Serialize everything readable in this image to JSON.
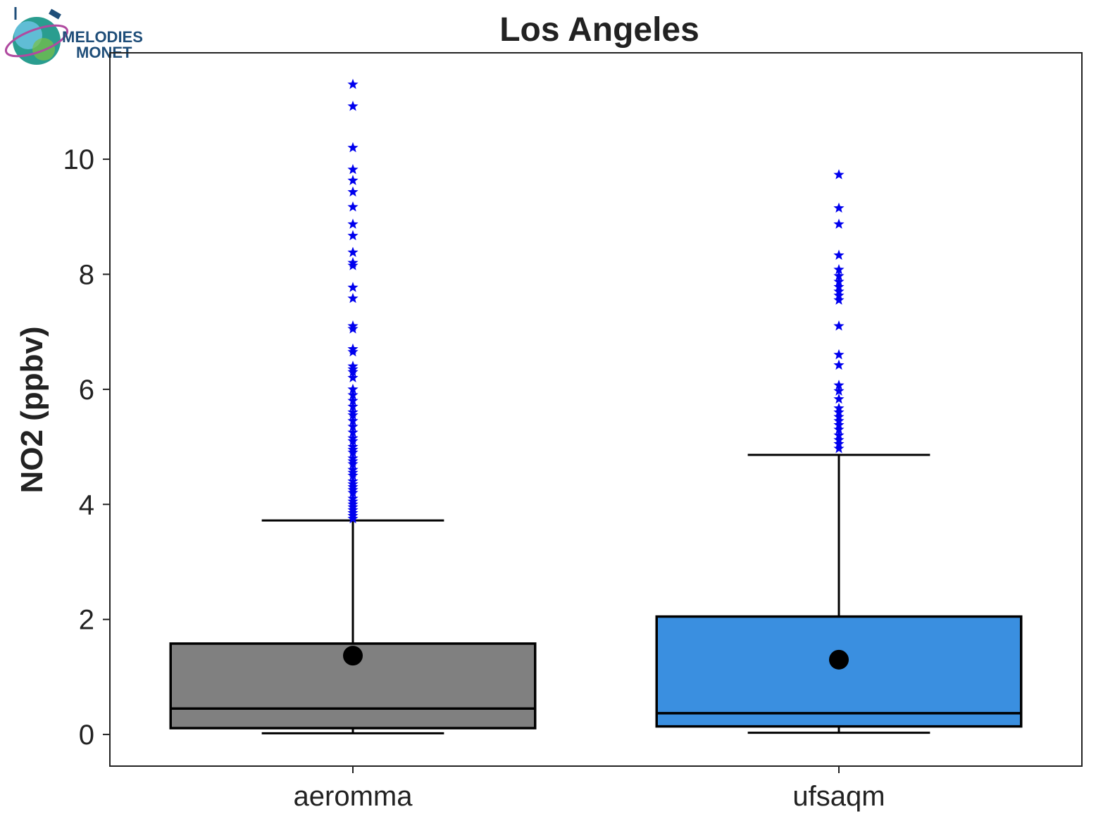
{
  "logo": {
    "line1": "MELODIES",
    "line2": "MONET",
    "icon": "globe-satellite-logo"
  },
  "chart_data": {
    "type": "box",
    "title": "Los Angeles",
    "xlabel": "",
    "ylabel": "NO2 (ppbv)",
    "ylim": [
      -0.55,
      11.85
    ],
    "yticks": [
      0,
      2,
      4,
      6,
      8,
      10
    ],
    "grid": false,
    "legend": "none",
    "categories": [
      "aeromma",
      "ufsaqm"
    ],
    "series": [
      {
        "name": "aeromma",
        "color": "#808080",
        "whisker_low": 0.02,
        "q1": 0.11,
        "median": 0.45,
        "q3": 1.58,
        "whisker_high": 3.72,
        "mean": 1.37,
        "outliers": [
          3.75,
          3.8,
          3.85,
          3.9,
          3.95,
          4.0,
          4.05,
          4.1,
          4.2,
          4.25,
          4.3,
          4.35,
          4.4,
          4.5,
          4.55,
          4.6,
          4.7,
          4.75,
          4.8,
          4.9,
          4.95,
          5.0,
          5.1,
          5.15,
          5.25,
          5.35,
          5.45,
          5.55,
          5.6,
          5.7,
          5.8,
          5.9,
          6.0,
          6.2,
          6.3,
          6.35,
          6.4,
          6.65,
          6.7,
          7.05,
          7.1,
          7.58,
          7.77,
          8.15,
          8.2,
          8.38,
          8.67,
          8.87,
          9.17,
          9.43,
          9.63,
          9.82,
          10.2,
          10.92,
          11.3
        ]
      },
      {
        "name": "ufsaqm",
        "color": "#3a8fe0",
        "whisker_low": 0.03,
        "q1": 0.14,
        "median": 0.37,
        "q3": 2.05,
        "whisker_high": 4.86,
        "mean": 1.3,
        "outliers": [
          4.97,
          5.05,
          5.12,
          5.2,
          5.3,
          5.38,
          5.45,
          5.52,
          5.6,
          5.67,
          5.83,
          5.97,
          6.07,
          6.42,
          6.6,
          7.1,
          7.55,
          7.63,
          7.7,
          7.78,
          7.87,
          7.97,
          8.08,
          8.33,
          8.87,
          9.15,
          9.73
        ]
      }
    ]
  }
}
